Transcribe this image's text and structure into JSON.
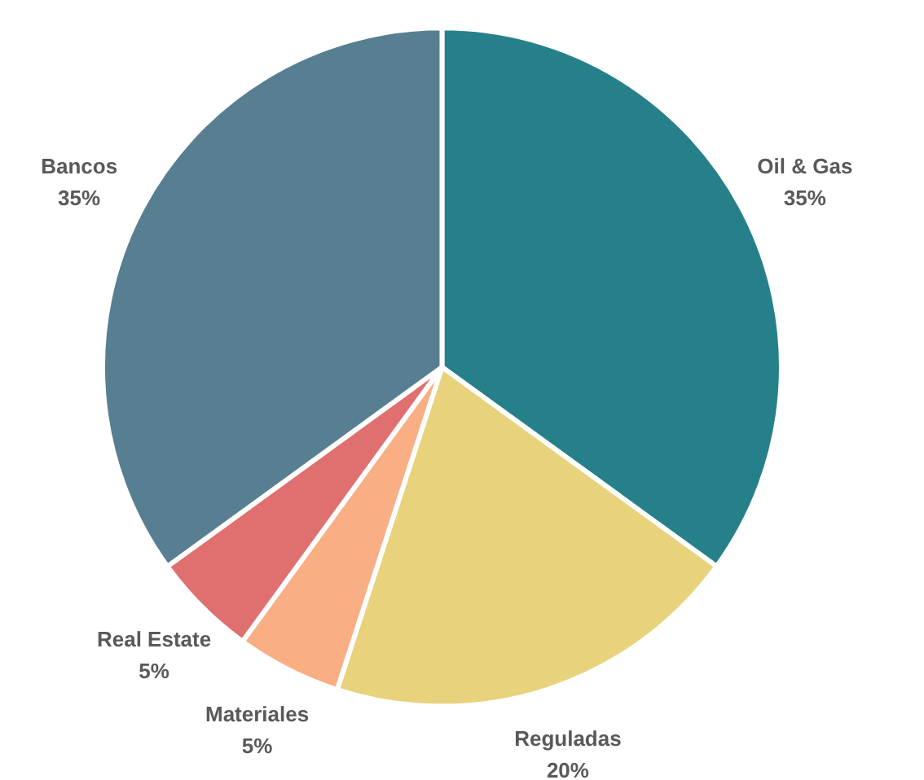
{
  "chart_data": {
    "type": "pie",
    "categories": [
      "Oil & Gas",
      "Reguladas",
      "Materiales",
      "Real Estate",
      "Bancos"
    ],
    "values": [
      35,
      20,
      5,
      5,
      35
    ],
    "value_labels": [
      "35%",
      "20%",
      "5%",
      "5%",
      "35%"
    ],
    "colors": [
      "#26808a",
      "#e8d27c",
      "#f9ae84",
      "#e07070",
      "#577f91"
    ]
  }
}
